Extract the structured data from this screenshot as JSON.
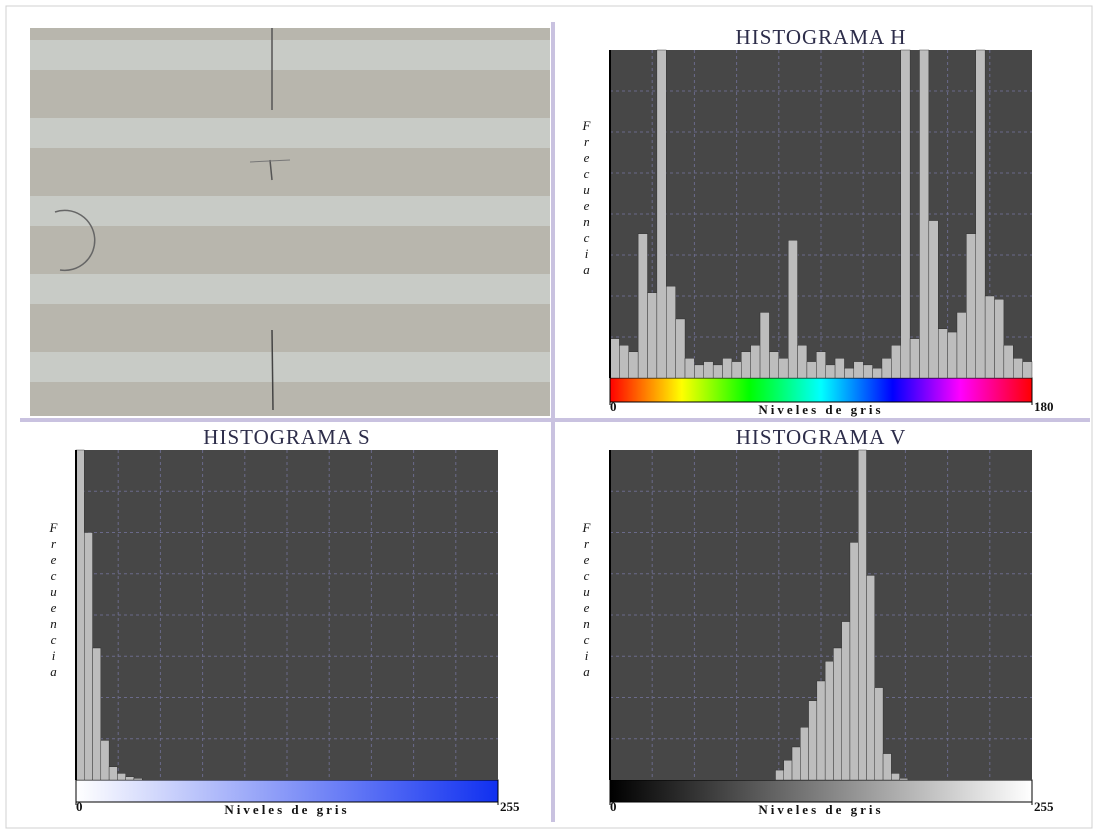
{
  "chart_data": [
    {
      "type": "histogram",
      "title": "HISTOGRAMA H",
      "x_label": "Niveles de gris",
      "y_label": "Frecuencia",
      "bins": [
        0,
        4,
        8,
        12,
        16,
        20,
        24,
        28,
        32,
        36,
        40,
        44,
        48,
        52,
        56,
        60,
        64,
        68,
        72,
        76,
        80,
        84,
        88,
        92,
        96,
        100,
        104,
        108,
        112,
        116,
        120,
        124,
        128,
        132,
        136,
        140,
        144,
        148,
        152,
        156,
        160,
        164,
        168,
        172,
        176,
        180
      ],
      "values": [
        12,
        10,
        8,
        44,
        26,
        100,
        28,
        18,
        6,
        4,
        5,
        4,
        6,
        5,
        8,
        10,
        20,
        8,
        6,
        42,
        10,
        5,
        8,
        4,
        6,
        3,
        5,
        4,
        3,
        6,
        10,
        100,
        12,
        100,
        48,
        15,
        14,
        20,
        44,
        100,
        25,
        24,
        10,
        6,
        5
      ],
      "xlim": [
        0,
        180
      ],
      "xticks": [
        0,
        180
      ],
      "ylim": [
        0,
        100
      ],
      "color": "#bdbdbd"
    },
    {
      "type": "histogram",
      "title": "HISTOGRAMA S",
      "x_label": "Niveles de gris",
      "y_label": "Frecuencia",
      "bins": [
        0,
        5,
        10,
        15,
        20,
        25,
        30,
        35,
        40,
        45,
        50,
        55,
        60,
        65,
        70,
        75,
        80,
        85,
        90,
        95,
        100,
        105,
        110,
        115,
        120,
        125,
        130,
        135,
        140,
        145,
        150,
        155,
        160,
        165,
        170,
        175,
        180,
        185,
        190,
        195,
        200,
        205,
        210,
        215,
        220,
        225,
        230,
        235,
        240,
        245,
        250,
        255
      ],
      "values": [
        100,
        75,
        40,
        12,
        4,
        2,
        1,
        0.5,
        0,
        0,
        0,
        0,
        0,
        0,
        0,
        0,
        0,
        0,
        0,
        0,
        0,
        0,
        0,
        0,
        0,
        0,
        0,
        0,
        0,
        0,
        0,
        0,
        0,
        0,
        0,
        0,
        0,
        0,
        0,
        0,
        0,
        0,
        0,
        0,
        0,
        0,
        0,
        0,
        0,
        0,
        0
      ],
      "xlim": [
        0,
        255
      ],
      "xticks": [
        0,
        255
      ],
      "ylim": [
        0,
        100
      ],
      "color": "#bdbdbd"
    },
    {
      "type": "histogram",
      "title": "HISTOGRAMA V",
      "x_label": "Niveles de gris",
      "y_label": "Frecuencia",
      "bins": [
        0,
        5,
        10,
        15,
        20,
        25,
        30,
        35,
        40,
        45,
        50,
        55,
        60,
        65,
        70,
        75,
        80,
        85,
        90,
        95,
        100,
        105,
        110,
        115,
        120,
        125,
        130,
        135,
        140,
        145,
        150,
        155,
        160,
        165,
        170,
        175,
        180,
        185,
        190,
        195,
        200,
        205,
        210,
        215,
        220,
        225,
        230,
        235,
        240,
        245,
        250,
        255
      ],
      "values": [
        0,
        0,
        0,
        0,
        0,
        0,
        0,
        0,
        0,
        0,
        0,
        0,
        0,
        0,
        0,
        0,
        0,
        0,
        0,
        0,
        3,
        6,
        10,
        16,
        24,
        30,
        36,
        40,
        48,
        72,
        100,
        62,
        28,
        8,
        2,
        0.5,
        0,
        0,
        0,
        0,
        0,
        0,
        0,
        0,
        0,
        0,
        0,
        0,
        0,
        0,
        0
      ],
      "xlim": [
        0,
        255
      ],
      "xticks": [
        0,
        255
      ],
      "ylim": [
        0,
        100
      ],
      "color": "#bdbdbd"
    }
  ]
}
